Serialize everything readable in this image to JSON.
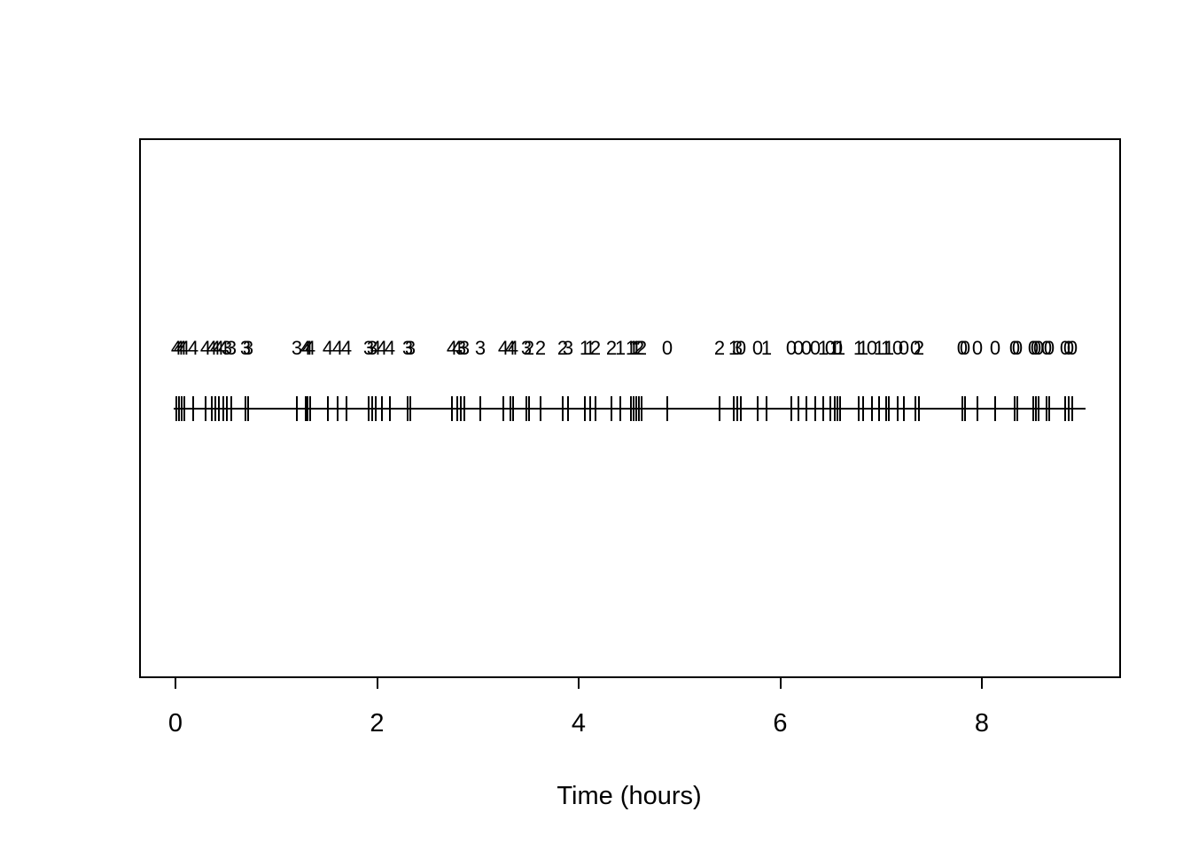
{
  "colors": {
    "foreground": "#000000",
    "background": "#ffffff"
  },
  "chart_data": {
    "type": "scatter",
    "subtype": "event-rug-plot-with-numeric-marks",
    "title": "",
    "xlabel": "Time (hours)",
    "ylabel": "",
    "xlim": [
      0,
      9.03
    ],
    "x_ticks": [
      0,
      2,
      4,
      6,
      8
    ],
    "grid": false,
    "legend_position": "none",
    "description": "Horizontal timeline with vertical tick marks at event times; a numeric mark (0-4) is printed above each event tick",
    "events": [
      {
        "t": 0.009,
        "mark": 4
      },
      {
        "t": 0.035,
        "mark": 4
      },
      {
        "t": 0.062,
        "mark": 4
      },
      {
        "t": 0.088,
        "mark": 4
      },
      {
        "t": 0.176,
        "mark": 4
      },
      {
        "t": 0.299,
        "mark": 4
      },
      {
        "t": 0.36,
        "mark": 4
      },
      {
        "t": 0.396,
        "mark": 4
      },
      {
        "t": 0.431,
        "mark": 4
      },
      {
        "t": 0.475,
        "mark": 4
      },
      {
        "t": 0.51,
        "mark": 3
      },
      {
        "t": 0.554,
        "mark": 3
      },
      {
        "t": 0.694,
        "mark": 3
      },
      {
        "t": 0.721,
        "mark": 3
      },
      {
        "t": 1.204,
        "mark": 3
      },
      {
        "t": 1.292,
        "mark": 4
      },
      {
        "t": 1.31,
        "mark": 4
      },
      {
        "t": 1.336,
        "mark": 4
      },
      {
        "t": 1.512,
        "mark": 4
      },
      {
        "t": 1.609,
        "mark": 4
      },
      {
        "t": 1.697,
        "mark": 4
      },
      {
        "t": 1.916,
        "mark": 3
      },
      {
        "t": 1.952,
        "mark": 3
      },
      {
        "t": 1.987,
        "mark": 4
      },
      {
        "t": 2.048,
        "mark": 4
      },
      {
        "t": 2.127,
        "mark": 4
      },
      {
        "t": 2.303,
        "mark": 3
      },
      {
        "t": 2.33,
        "mark": 3
      },
      {
        "t": 2.743,
        "mark": 4
      },
      {
        "t": 2.795,
        "mark": 4
      },
      {
        "t": 2.831,
        "mark": 3
      },
      {
        "t": 2.866,
        "mark": 3
      },
      {
        "t": 3.024,
        "mark": 3
      },
      {
        "t": 3.253,
        "mark": 4
      },
      {
        "t": 3.323,
        "mark": 4
      },
      {
        "t": 3.349,
        "mark": 4
      },
      {
        "t": 3.481,
        "mark": 3
      },
      {
        "t": 3.508,
        "mark": 2
      },
      {
        "t": 3.622,
        "mark": 2
      },
      {
        "t": 3.842,
        "mark": 2
      },
      {
        "t": 3.895,
        "mark": 3
      },
      {
        "t": 4.062,
        "mark": 1
      },
      {
        "t": 4.114,
        "mark": 1
      },
      {
        "t": 4.167,
        "mark": 2
      },
      {
        "t": 4.325,
        "mark": 2
      },
      {
        "t": 4.413,
        "mark": 1
      },
      {
        "t": 4.519,
        "mark": 1
      },
      {
        "t": 4.545,
        "mark": 1
      },
      {
        "t": 4.571,
        "mark": 1
      },
      {
        "t": 4.598,
        "mark": 2
      },
      {
        "t": 4.624,
        "mark": 2
      },
      {
        "t": 4.879,
        "mark": 0
      },
      {
        "t": 5.398,
        "mark": 2
      },
      {
        "t": 5.538,
        "mark": 1
      },
      {
        "t": 5.574,
        "mark": 3
      },
      {
        "t": 5.609,
        "mark": 0
      },
      {
        "t": 5.776,
        "mark": 0
      },
      {
        "t": 5.864,
        "mark": 1
      },
      {
        "t": 6.11,
        "mark": 0
      },
      {
        "t": 6.18,
        "mark": 0
      },
      {
        "t": 6.259,
        "mark": 0
      },
      {
        "t": 6.347,
        "mark": 0
      },
      {
        "t": 6.426,
        "mark": 1
      },
      {
        "t": 6.497,
        "mark": 0
      },
      {
        "t": 6.541,
        "mark": 1
      },
      {
        "t": 6.567,
        "mark": 0
      },
      {
        "t": 6.593,
        "mark": 1
      },
      {
        "t": 6.778,
        "mark": 1
      },
      {
        "t": 6.822,
        "mark": 1
      },
      {
        "t": 6.91,
        "mark": 0
      },
      {
        "t": 6.98,
        "mark": 1
      },
      {
        "t": 7.051,
        "mark": 1
      },
      {
        "t": 7.077,
        "mark": 1
      },
      {
        "t": 7.165,
        "mark": 0
      },
      {
        "t": 7.226,
        "mark": 0
      },
      {
        "t": 7.341,
        "mark": 0
      },
      {
        "t": 7.376,
        "mark": 2
      },
      {
        "t": 7.806,
        "mark": 0
      },
      {
        "t": 7.833,
        "mark": 0
      },
      {
        "t": 7.956,
        "mark": 0
      },
      {
        "t": 8.132,
        "mark": 0
      },
      {
        "t": 8.325,
        "mark": 0
      },
      {
        "t": 8.352,
        "mark": 0
      },
      {
        "t": 8.51,
        "mark": 0
      },
      {
        "t": 8.536,
        "mark": 0
      },
      {
        "t": 8.563,
        "mark": 0
      },
      {
        "t": 8.642,
        "mark": 0
      },
      {
        "t": 8.668,
        "mark": 0
      },
      {
        "t": 8.826,
        "mark": 0
      },
      {
        "t": 8.862,
        "mark": 0
      },
      {
        "t": 8.897,
        "mark": 0
      }
    ]
  }
}
